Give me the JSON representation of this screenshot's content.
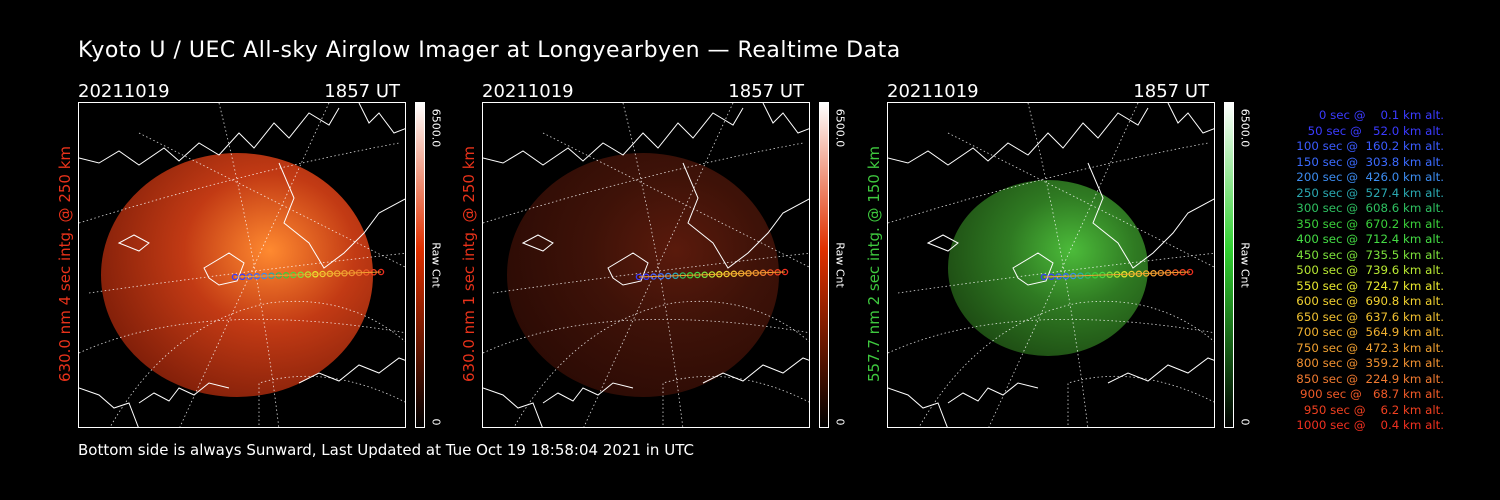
{
  "title": "Kyoto U / UEC All-sky Airglow Imager at Longyearbyen — Realtime Data",
  "panels": [
    {
      "date": "20211019",
      "time": "1857 UT",
      "label": "630.0 nm 4 sec intg. @ 250 km",
      "label_color": "#e8321a",
      "color_max": "6500.0",
      "color_min": "0",
      "unit": "Raw Cnt",
      "cbar_color": "#e03000"
    },
    {
      "date": "20211019",
      "time": "1857 UT",
      "label": "630.0 nm 1 sec intg. @ 250 km",
      "label_color": "#e8321a",
      "color_max": "6500.0",
      "color_min": "0",
      "unit": "Raw Cnt",
      "cbar_color": "#e03000"
    },
    {
      "date": "20211019",
      "time": "1857 UT",
      "label": "557.7 nm 2 sec intg. @ 150 km",
      "label_color": "#3ec83e",
      "color_max": "6500.0",
      "color_min": "0",
      "unit": "Raw Cnt",
      "cbar_color": "#30d030"
    }
  ],
  "trajectory_legend": [
    {
      "text": "   0 sec @    0.1 km alt.",
      "color": "#3b3bff"
    },
    {
      "text": "  50 sec @   52.0 km alt.",
      "color": "#3b3bff"
    },
    {
      "text": " 100 sec @  160.2 km alt.",
      "color": "#3b5bff"
    },
    {
      "text": " 150 sec @  303.8 km alt.",
      "color": "#3b6bff"
    },
    {
      "text": " 200 sec @  426.0 km alt.",
      "color": "#3c8cf0"
    },
    {
      "text": " 250 sec @  527.4 km alt.",
      "color": "#2aa8b0"
    },
    {
      "text": " 300 sec @  608.6 km alt.",
      "color": "#2ec060"
    },
    {
      "text": " 350 sec @  670.2 km alt.",
      "color": "#3ad03a"
    },
    {
      "text": " 400 sec @  712.4 km alt.",
      "color": "#44dc44"
    },
    {
      "text": " 450 sec @  735.5 km alt.",
      "color": "#7be03a"
    },
    {
      "text": " 500 sec @  739.6 km alt.",
      "color": "#b8e832"
    },
    {
      "text": " 550 sec @  724.7 km alt.",
      "color": "#e8e82e"
    },
    {
      "text": " 600 sec @  690.8 km alt.",
      "color": "#f0d030"
    },
    {
      "text": " 650 sec @  637.6 km alt.",
      "color": "#f0c030"
    },
    {
      "text": " 700 sec @  564.9 km alt.",
      "color": "#f0b030"
    },
    {
      "text": " 750 sec @  472.3 km alt.",
      "color": "#f0a030"
    },
    {
      "text": " 800 sec @  359.2 km alt.",
      "color": "#f09030"
    },
    {
      "text": " 850 sec @  224.9 km alt.",
      "color": "#f07a30"
    },
    {
      "text": " 900 sec @   68.7 km alt.",
      "color": "#f05a28"
    },
    {
      "text": " 950 sec @    6.2 km alt.",
      "color": "#f04020"
    },
    {
      "text": "1000 sec @    0.4 km alt.",
      "color": "#f03020"
    }
  ],
  "footer": "Bottom side is always Sunward, Last Updated at Tue Oct 19 18:58:04 2021 in UTC"
}
